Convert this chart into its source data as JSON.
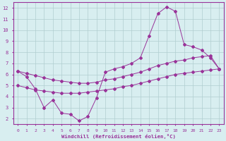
{
  "line1_x": [
    0,
    1,
    2,
    3,
    4,
    5,
    6,
    7,
    8,
    9,
    10,
    11,
    12,
    13,
    14,
    15,
    16,
    17,
    18,
    19,
    20,
    21,
    22,
    23
  ],
  "line1_y": [
    6.3,
    5.8,
    4.7,
    3.0,
    3.7,
    2.5,
    2.4,
    1.8,
    2.2,
    3.9,
    6.2,
    6.5,
    6.7,
    7.0,
    7.5,
    9.5,
    11.5,
    12.1,
    11.7,
    8.7,
    8.5,
    8.2,
    7.5,
    6.5
  ],
  "line2_x": [
    0,
    1,
    2,
    3,
    4,
    5,
    6,
    7,
    8,
    9,
    10,
    11,
    12,
    13,
    14,
    15,
    16,
    17,
    18,
    19,
    20,
    21,
    22,
    23
  ],
  "line2_y": [
    6.3,
    6.1,
    5.9,
    5.7,
    5.5,
    5.4,
    5.3,
    5.2,
    5.2,
    5.3,
    5.5,
    5.6,
    5.8,
    6.0,
    6.2,
    6.5,
    6.8,
    7.0,
    7.2,
    7.3,
    7.5,
    7.6,
    7.7,
    6.5
  ],
  "line3_x": [
    0,
    1,
    2,
    3,
    4,
    5,
    6,
    7,
    8,
    9,
    10,
    11,
    12,
    13,
    14,
    15,
    16,
    17,
    18,
    19,
    20,
    21,
    22,
    23
  ],
  "line3_y": [
    5.0,
    4.8,
    4.6,
    4.5,
    4.4,
    4.3,
    4.3,
    4.3,
    4.4,
    4.5,
    4.6,
    4.7,
    4.9,
    5.0,
    5.2,
    5.4,
    5.6,
    5.8,
    6.0,
    6.1,
    6.2,
    6.3,
    6.4,
    6.5
  ],
  "line_color": "#993399",
  "bg_color": "#d8eef0",
  "grid_color": "#b0cdd0",
  "xlabel": "Windchill (Refroidissement éolien,°C)",
  "ylim": [
    1.5,
    12.5
  ],
  "xlim": [
    -0.5,
    23.5
  ],
  "yticks": [
    2,
    3,
    4,
    5,
    6,
    7,
    8,
    9,
    10,
    11,
    12
  ],
  "xticks": [
    0,
    1,
    2,
    3,
    4,
    5,
    6,
    7,
    8,
    9,
    10,
    11,
    12,
    13,
    14,
    15,
    16,
    17,
    18,
    19,
    20,
    21,
    22,
    23
  ]
}
